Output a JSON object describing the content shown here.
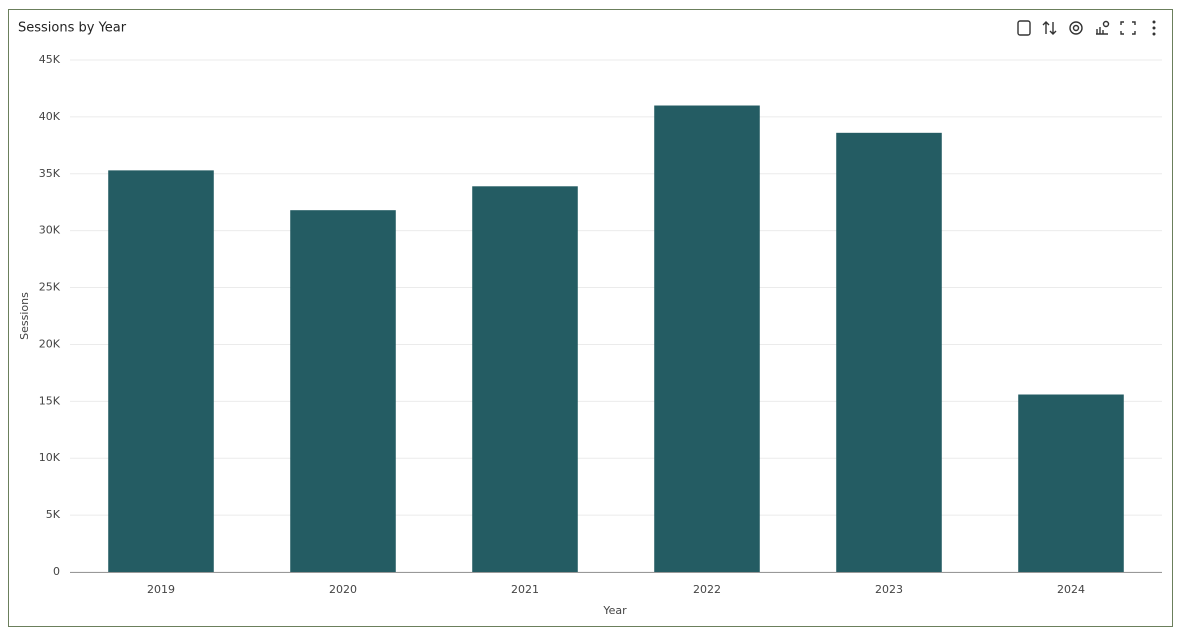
{
  "chart_data": {
    "type": "bar",
    "title": "Sessions by Year",
    "x_label": "Year",
    "y_label": "Sessions",
    "categories": [
      "2019",
      "2020",
      "2021",
      "2022",
      "2023",
      "2024"
    ],
    "values": [
      35300,
      31800,
      33900,
      41000,
      38600,
      15600
    ],
    "color": "#245c63",
    "ylim": [
      0,
      45000
    ],
    "yticks": [
      0,
      {
        "value": 5000,
        "label": "5K"
      },
      {
        "value": 10000,
        "label": "10K"
      },
      {
        "value": 15000,
        "label": "15K"
      },
      {
        "value": 20000,
        "label": "20K"
      },
      {
        "value": 25000,
        "label": "25K"
      },
      {
        "value": 30000,
        "label": "30K"
      },
      {
        "value": 35000,
        "label": "35K"
      },
      {
        "value": 40000,
        "label": "40K"
      },
      {
        "value": 45000,
        "label": "45K"
      }
    ],
    "grid": true
  }
}
